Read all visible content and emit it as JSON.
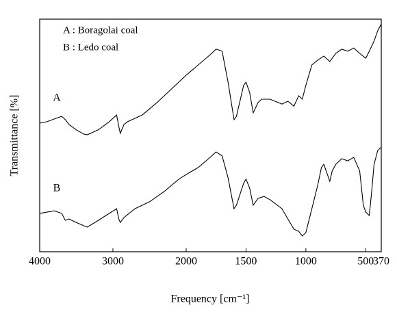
{
  "chart_data": {
    "type": "line",
    "xlabel": "Frequency [cm⁻¹]",
    "ylabel": "Transmittance [%]",
    "annotations": [
      "A : Boragolai coal",
      "B : Ledo coal"
    ],
    "xlim": [
      4000,
      370
    ],
    "xticks": [
      4000,
      3000,
      2000,
      1500,
      1000,
      500,
      370
    ],
    "ylim": [
      0,
      100
    ],
    "series": [
      {
        "name": "A",
        "color": "#000000",
        "x": [
          4000,
          3900,
          3800,
          3700,
          3650,
          3600,
          3500,
          3400,
          3350,
          3200,
          3050,
          2950,
          2920,
          2900,
          2850,
          2800,
          2600,
          2400,
          2200,
          2000,
          1900,
          1800,
          1750,
          1700,
          1650,
          1600,
          1580,
          1520,
          1500,
          1470,
          1440,
          1400,
          1370,
          1300,
          1200,
          1150,
          1100,
          1060,
          1030,
          1000,
          950,
          900,
          850,
          800,
          750,
          700,
          650,
          600,
          550,
          500,
          470,
          430,
          400,
          370
        ],
        "values": [
          55.3,
          55.9,
          57.1,
          58.2,
          56.8,
          54.7,
          52.4,
          50.6,
          50.3,
          52.4,
          55.9,
          58.8,
          53.8,
          50.9,
          54.7,
          55.9,
          58.8,
          64.1,
          70.0,
          75.9,
          80.3,
          84.7,
          87.1,
          86.2,
          72.9,
          56.8,
          58.2,
          71.5,
          72.9,
          68.5,
          59.7,
          64.1,
          65.6,
          65.6,
          63.5,
          64.7,
          62.6,
          67.1,
          65.6,
          71.5,
          80.3,
          82.4,
          84.1,
          81.8,
          85.3,
          87.1,
          86.2,
          87.6,
          85.3,
          83.2,
          86.2,
          90.6,
          95.0,
          97.9
        ]
      },
      {
        "name": "B",
        "color": "#000000",
        "x": [
          4000,
          3800,
          3700,
          3650,
          3600,
          3500,
          3400,
          3350,
          3200,
          3050,
          2950,
          2920,
          2900,
          2850,
          2700,
          2500,
          2300,
          2100,
          2000,
          1900,
          1800,
          1750,
          1700,
          1650,
          1600,
          1580,
          1520,
          1500,
          1470,
          1440,
          1400,
          1350,
          1300,
          1200,
          1150,
          1100,
          1060,
          1030,
          1000,
          950,
          900,
          870,
          850,
          800,
          780,
          750,
          700,
          650,
          600,
          550,
          520,
          500,
          470,
          450,
          430,
          400,
          370
        ],
        "values": [
          16.5,
          17.6,
          16.5,
          13.5,
          14.1,
          12.6,
          11.2,
          10.6,
          13.5,
          16.5,
          18.5,
          14.1,
          12.6,
          14.7,
          18.5,
          21.5,
          25.9,
          31.2,
          33.2,
          36.2,
          40.6,
          42.9,
          41.2,
          31.8,
          18.5,
          20.0,
          29.4,
          31.2,
          27.4,
          20.0,
          22.9,
          23.8,
          22.4,
          18.5,
          14.1,
          9.7,
          8.8,
          6.8,
          8.2,
          18.5,
          28.8,
          36.2,
          37.6,
          30.3,
          34.7,
          37.6,
          40.0,
          39.1,
          40.6,
          34.7,
          20.0,
          17.1,
          15.6,
          25.9,
          37.6,
          43.5,
          45.0
        ]
      }
    ]
  }
}
